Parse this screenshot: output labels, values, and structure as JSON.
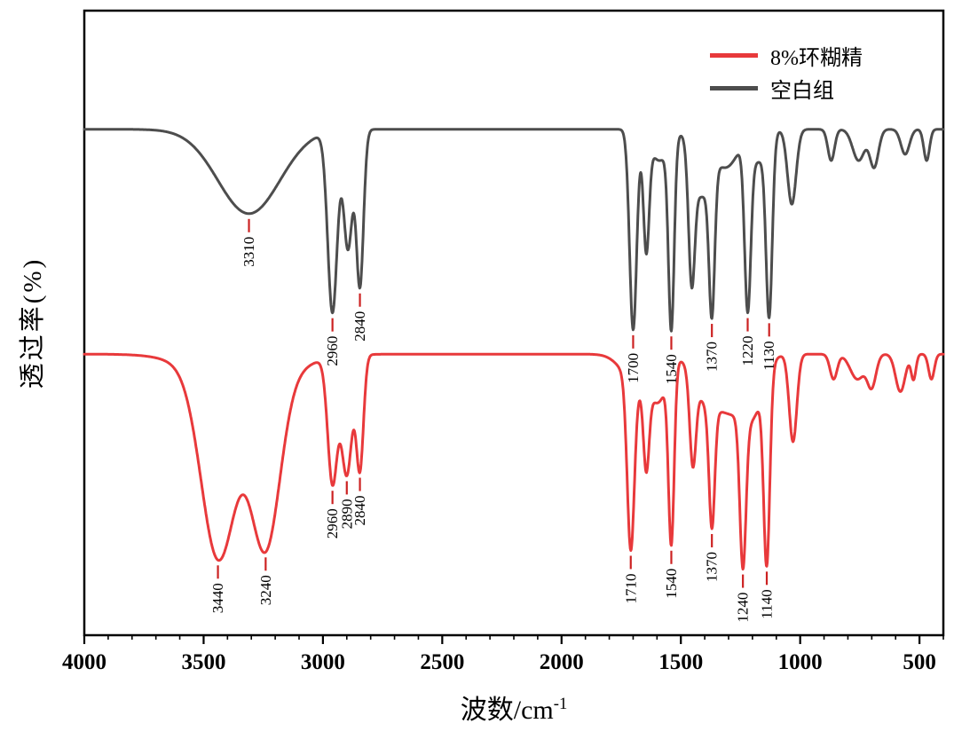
{
  "chart_data": {
    "type": "line",
    "title": "",
    "xlabel": "波数/cm",
    "xlabel_superscript": "-1",
    "ylabel": "透过率(%)",
    "grid": false,
    "x_axis": {
      "max": 4000,
      "min": 400,
      "reversed": true,
      "major_ticks": [
        4000,
        3500,
        3000,
        2500,
        2000,
        1500,
        1000,
        500
      ],
      "minor_tick_interval": 100
    },
    "y_axis": {
      "min": 0,
      "max": 100,
      "show_tick_labels": false
    },
    "legend": {
      "position": "top-right",
      "items": [
        {
          "label": "8%环糊精",
          "color": "#e8393b"
        },
        {
          "label": "空白组",
          "color": "#4d4d4d"
        }
      ]
    },
    "annotation_marker_color": "#cc2222",
    "series": [
      {
        "name": "空白组",
        "color": "#4d4d4d",
        "baseline": 81,
        "peaks": [
          [
            3310,
            130,
            13.5
          ],
          [
            2960,
            20,
            29
          ],
          [
            2895,
            18,
            19
          ],
          [
            2845,
            15,
            25
          ],
          [
            1700,
            15,
            32
          ],
          [
            1645,
            12,
            18
          ],
          [
            1590,
            40,
            5
          ],
          [
            1540,
            12,
            30
          ],
          [
            1455,
            13,
            20
          ],
          [
            1415,
            35,
            10
          ],
          [
            1370,
            12,
            23
          ],
          [
            1310,
            50,
            6
          ],
          [
            1220,
            13,
            26
          ],
          [
            1175,
            35,
            5
          ],
          [
            1130,
            13,
            28
          ],
          [
            1035,
            18,
            12
          ],
          [
            870,
            14,
            5
          ],
          [
            755,
            25,
            5
          ],
          [
            690,
            18,
            6
          ],
          [
            560,
            18,
            4
          ],
          [
            470,
            12,
            5
          ]
        ],
        "annotations": [
          {
            "x": 3310,
            "label": "3310"
          },
          {
            "x": 2960,
            "label": "2960"
          },
          {
            "x": 2845,
            "label": "2840"
          },
          {
            "x": 1700,
            "label": "1700"
          },
          {
            "x": 1540,
            "label": "1540"
          },
          {
            "x": 1370,
            "label": "1370"
          },
          {
            "x": 1220,
            "label": "1220"
          },
          {
            "x": 1130,
            "label": "1130"
          }
        ]
      },
      {
        "name": "8%环糊精",
        "color": "#e8393b",
        "baseline": 45,
        "peaks": [
          [
            3440,
            70,
            28
          ],
          [
            3240,
            60,
            26
          ],
          [
            3330,
            170,
            6
          ],
          [
            2960,
            20,
            20
          ],
          [
            2900,
            22,
            19
          ],
          [
            2845,
            15,
            18
          ],
          [
            1710,
            15,
            27
          ],
          [
            1680,
            60,
            5
          ],
          [
            1645,
            12,
            13
          ],
          [
            1590,
            35,
            6
          ],
          [
            1540,
            12,
            28
          ],
          [
            1450,
            13,
            14
          ],
          [
            1400,
            50,
            6
          ],
          [
            1370,
            12,
            19
          ],
          [
            1280,
            70,
            9
          ],
          [
            1240,
            13,
            24
          ],
          [
            1190,
            40,
            6
          ],
          [
            1140,
            13,
            30
          ],
          [
            1030,
            16,
            14
          ],
          [
            860,
            15,
            4
          ],
          [
            760,
            30,
            4
          ],
          [
            700,
            18,
            5
          ],
          [
            580,
            20,
            6
          ],
          [
            525,
            10,
            4
          ],
          [
            450,
            12,
            4
          ]
        ],
        "annotations": [
          {
            "x": 3440,
            "label": "3440"
          },
          {
            "x": 3240,
            "label": "3240"
          },
          {
            "x": 2960,
            "label": "2960"
          },
          {
            "x": 2900,
            "label": "2890"
          },
          {
            "x": 2845,
            "label": "2840"
          },
          {
            "x": 1710,
            "label": "1710"
          },
          {
            "x": 1540,
            "label": "1540"
          },
          {
            "x": 1370,
            "label": "1370"
          },
          {
            "x": 1240,
            "label": "1240"
          },
          {
            "x": 1140,
            "label": "1140"
          }
        ]
      }
    ]
  }
}
